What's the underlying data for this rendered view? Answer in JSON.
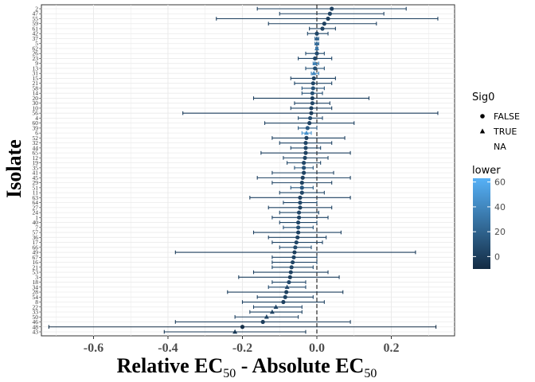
{
  "chart_data": {
    "type": "scatter",
    "xlabel": {
      "main": "Relative EC",
      "sub": "50",
      "mid": " - Absolute EC",
      "sub2": "50"
    },
    "ylabel": "Isolate",
    "xlim": [
      -0.74,
      0.37
    ],
    "xticks": [
      -0.6,
      -0.4,
      -0.2,
      0.0,
      0.2
    ],
    "xtick_labels": [
      "-0.6",
      "-0.4",
      "-0.2",
      "0.0",
      "0.2"
    ],
    "grid": true,
    "reference_line_x": 0,
    "legend_placement": "right",
    "shape_legend": {
      "title": "Sig0",
      "items": [
        {
          "label": "FALSE",
          "shape": "circle"
        },
        {
          "label": "TRUE",
          "shape": "triangle"
        },
        {
          "label": "NA",
          "shape": "none"
        }
      ]
    },
    "color_legend": {
      "title": "lower",
      "range": [
        -10,
        63
      ],
      "ticks": [
        0,
        20,
        40,
        60
      ],
      "tick_labels": [
        "0",
        "20",
        "40",
        "60"
      ],
      "low_color": "#132B43",
      "high_color": "#56B1F7"
    },
    "points": [
      {
        "isolate": "2",
        "x": 0.04,
        "xmin": -0.16,
        "xmax": 0.24,
        "shape": "circle",
        "lower": 2
      },
      {
        "isolate": "47",
        "x": 0.035,
        "xmin": -0.1,
        "xmax": 0.18,
        "shape": "circle",
        "lower": 3
      },
      {
        "isolate": "55",
        "x": 0.03,
        "xmin": -0.27,
        "xmax": 0.325,
        "shape": "circle",
        "lower": 1
      },
      {
        "isolate": "59",
        "x": 0.02,
        "xmin": -0.13,
        "xmax": 0.16,
        "shape": "circle",
        "lower": 2
      },
      {
        "isolate": "61",
        "x": 0.015,
        "xmin": -0.02,
        "xmax": 0.05,
        "shape": "circle",
        "lower": 4
      },
      {
        "isolate": "42",
        "x": 0.0,
        "xmin": -0.025,
        "xmax": 0.03,
        "shape": "circle",
        "lower": 5
      },
      {
        "isolate": "37",
        "x": 0.0,
        "xmin": -0.005,
        "xmax": 0.005,
        "shape": "triangle",
        "lower": 20
      },
      {
        "isolate": "5",
        "x": 0.0,
        "xmin": -0.005,
        "xmax": 0.005,
        "shape": "triangle",
        "lower": 25
      },
      {
        "isolate": "62",
        "x": 0.0,
        "xmin": -0.003,
        "xmax": 0.003,
        "shape": "triangle",
        "lower": 30
      },
      {
        "isolate": "26",
        "x": 0.0,
        "xmin": -0.03,
        "xmax": 0.02,
        "shape": "circle",
        "lower": 8
      },
      {
        "isolate": "23",
        "x": -0.005,
        "xmin": -0.05,
        "xmax": 0.04,
        "shape": "circle",
        "lower": 6
      },
      {
        "isolate": "9",
        "x": -0.005,
        "xmin": -0.01,
        "xmax": 0.005,
        "shape": "triangle",
        "lower": 35
      },
      {
        "isolate": "13",
        "x": -0.005,
        "xmin": -0.03,
        "xmax": 0.02,
        "shape": "circle",
        "lower": 10
      },
      {
        "isolate": "31",
        "x": -0.008,
        "xmin": -0.015,
        "xmax": 0.005,
        "shape": "triangle",
        "lower": 40
      },
      {
        "isolate": "15",
        "x": -0.008,
        "xmin": -0.07,
        "xmax": 0.05,
        "shape": "circle",
        "lower": 3
      },
      {
        "isolate": "21",
        "x": -0.01,
        "xmin": -0.06,
        "xmax": 0.04,
        "shape": "circle",
        "lower": 5
      },
      {
        "isolate": "58",
        "x": -0.01,
        "xmin": -0.04,
        "xmax": 0.02,
        "shape": "circle",
        "lower": 12
      },
      {
        "isolate": "14",
        "x": -0.012,
        "xmin": -0.04,
        "xmax": 0.015,
        "shape": "circle",
        "lower": 10
      },
      {
        "isolate": "20",
        "x": -0.012,
        "xmin": -0.17,
        "xmax": 0.14,
        "shape": "circle",
        "lower": 1
      },
      {
        "isolate": "30",
        "x": -0.012,
        "xmin": -0.06,
        "xmax": 0.035,
        "shape": "circle",
        "lower": 4
      },
      {
        "isolate": "10",
        "x": -0.015,
        "xmin": -0.07,
        "xmax": 0.04,
        "shape": "circle",
        "lower": 3
      },
      {
        "isolate": "56",
        "x": -0.015,
        "xmin": -0.36,
        "xmax": 0.325,
        "shape": "circle",
        "lower": 0
      },
      {
        "isolate": "4",
        "x": -0.018,
        "xmin": -0.05,
        "xmax": 0.015,
        "shape": "circle",
        "lower": 8
      },
      {
        "isolate": "60",
        "x": -0.02,
        "xmin": -0.14,
        "xmax": 0.1,
        "shape": "circle",
        "lower": 2
      },
      {
        "isolate": "39",
        "x": -0.025,
        "xmin": -0.05,
        "xmax": 0.0,
        "shape": "circle",
        "lower": 15
      },
      {
        "isolate": "6",
        "x": -0.028,
        "xmin": -0.04,
        "xmax": -0.015,
        "shape": "triangle",
        "lower": 45
      },
      {
        "isolate": "52",
        "x": -0.028,
        "xmin": -0.12,
        "xmax": 0.075,
        "shape": "circle",
        "lower": 2
      },
      {
        "isolate": "32",
        "x": -0.03,
        "xmin": -0.1,
        "xmax": 0.04,
        "shape": "circle",
        "lower": 4
      },
      {
        "isolate": "44",
        "x": -0.03,
        "xmin": -0.07,
        "xmax": 0.01,
        "shape": "circle",
        "lower": 6
      },
      {
        "isolate": "65",
        "x": -0.03,
        "xmin": -0.15,
        "xmax": 0.09,
        "shape": "circle",
        "lower": 2
      },
      {
        "isolate": "12",
        "x": -0.032,
        "xmin": -0.09,
        "xmax": 0.03,
        "shape": "circle",
        "lower": 4
      },
      {
        "isolate": "19",
        "x": -0.035,
        "xmin": -0.08,
        "xmax": 0.01,
        "shape": "circle",
        "lower": 5
      },
      {
        "isolate": "35",
        "x": -0.035,
        "xmin": -0.06,
        "xmax": -0.01,
        "shape": "circle",
        "lower": 12
      },
      {
        "isolate": "41",
        "x": -0.035,
        "xmin": -0.12,
        "xmax": 0.045,
        "shape": "circle",
        "lower": 3
      },
      {
        "isolate": "45",
        "x": -0.038,
        "xmin": -0.16,
        "xmax": 0.09,
        "shape": "circle",
        "lower": 2
      },
      {
        "isolate": "29",
        "x": -0.04,
        "xmin": -0.12,
        "xmax": 0.04,
        "shape": "circle",
        "lower": 3
      },
      {
        "isolate": "51",
        "x": -0.04,
        "xmin": -0.07,
        "xmax": -0.01,
        "shape": "circle",
        "lower": 15
      },
      {
        "isolate": "11",
        "x": -0.04,
        "xmin": -0.1,
        "xmax": 0.02,
        "shape": "circle",
        "lower": 5
      },
      {
        "isolate": "63",
        "x": -0.045,
        "xmin": -0.18,
        "xmax": 0.09,
        "shape": "circle",
        "lower": 2
      },
      {
        "isolate": "64",
        "x": -0.045,
        "xmin": -0.09,
        "xmax": 0.0,
        "shape": "circle",
        "lower": 6
      },
      {
        "isolate": "27",
        "x": -0.045,
        "xmin": -0.13,
        "xmax": 0.04,
        "shape": "circle",
        "lower": 3
      },
      {
        "isolate": "24",
        "x": -0.048,
        "xmin": -0.1,
        "xmax": 0.005,
        "shape": "circle",
        "lower": 5
      },
      {
        "isolate": "1",
        "x": -0.048,
        "xmin": -0.12,
        "xmax": 0.03,
        "shape": "circle",
        "lower": 4
      },
      {
        "isolate": "40",
        "x": -0.05,
        "xmin": -0.1,
        "xmax": 0.0,
        "shape": "circle",
        "lower": 5
      },
      {
        "isolate": "7",
        "x": -0.05,
        "xmin": -0.09,
        "xmax": -0.01,
        "shape": "circle",
        "lower": 10
      },
      {
        "isolate": "57",
        "x": -0.05,
        "xmin": -0.17,
        "xmax": 0.065,
        "shape": "circle",
        "lower": 2
      },
      {
        "isolate": "36",
        "x": -0.052,
        "xmin": -0.13,
        "xmax": 0.025,
        "shape": "circle",
        "lower": 3
      },
      {
        "isolate": "17",
        "x": -0.055,
        "xmin": -0.12,
        "xmax": 0.015,
        "shape": "circle",
        "lower": 4
      },
      {
        "isolate": "66",
        "x": -0.058,
        "xmin": -0.1,
        "xmax": -0.015,
        "shape": "circle",
        "lower": 8
      },
      {
        "isolate": "49",
        "x": -0.06,
        "xmin": -0.38,
        "xmax": 0.265,
        "shape": "circle",
        "lower": 0
      },
      {
        "isolate": "67",
        "x": -0.062,
        "xmin": -0.12,
        "xmax": 0.0,
        "shape": "circle",
        "lower": 4
      },
      {
        "isolate": "16",
        "x": -0.065,
        "xmin": -0.12,
        "xmax": 0.0,
        "shape": "circle",
        "lower": 4
      },
      {
        "isolate": "21",
        "x": -0.068,
        "xmin": -0.12,
        "xmax": -0.01,
        "shape": "circle",
        "lower": 5
      },
      {
        "isolate": "53",
        "x": -0.07,
        "xmin": -0.17,
        "xmax": 0.03,
        "shape": "circle",
        "lower": 2
      },
      {
        "isolate": "3",
        "x": -0.072,
        "xmin": -0.21,
        "xmax": 0.06,
        "shape": "circle",
        "lower": 1
      },
      {
        "isolate": "18",
        "x": -0.075,
        "xmin": -0.12,
        "xmax": -0.03,
        "shape": "circle",
        "lower": 6
      },
      {
        "isolate": "34",
        "x": -0.08,
        "xmin": -0.13,
        "xmax": -0.03,
        "shape": "triangle",
        "lower": 7
      },
      {
        "isolate": "28",
        "x": -0.082,
        "xmin": -0.24,
        "xmax": 0.07,
        "shape": "circle",
        "lower": 1
      },
      {
        "isolate": "54",
        "x": -0.085,
        "xmin": -0.16,
        "xmax": -0.01,
        "shape": "circle",
        "lower": 3
      },
      {
        "isolate": "8",
        "x": -0.09,
        "xmin": -0.2,
        "xmax": 0.02,
        "shape": "circle",
        "lower": 2
      },
      {
        "isolate": "22",
        "x": -0.11,
        "xmin": -0.17,
        "xmax": -0.04,
        "shape": "triangle",
        "lower": 4
      },
      {
        "isolate": "33",
        "x": -0.12,
        "xmin": -0.18,
        "xmax": -0.04,
        "shape": "triangle",
        "lower": 3
      },
      {
        "isolate": "50",
        "x": -0.135,
        "xmin": -0.22,
        "xmax": -0.05,
        "shape": "triangle",
        "lower": 3
      },
      {
        "isolate": "46",
        "x": -0.145,
        "xmin": -0.38,
        "xmax": 0.09,
        "shape": "circle",
        "lower": 0
      },
      {
        "isolate": "48",
        "x": -0.2,
        "xmin": -0.72,
        "xmax": 0.32,
        "shape": "circle",
        "lower": -8
      },
      {
        "isolate": "43",
        "x": -0.22,
        "xmin": -0.41,
        "xmax": -0.03,
        "shape": "triangle",
        "lower": -2
      }
    ]
  }
}
